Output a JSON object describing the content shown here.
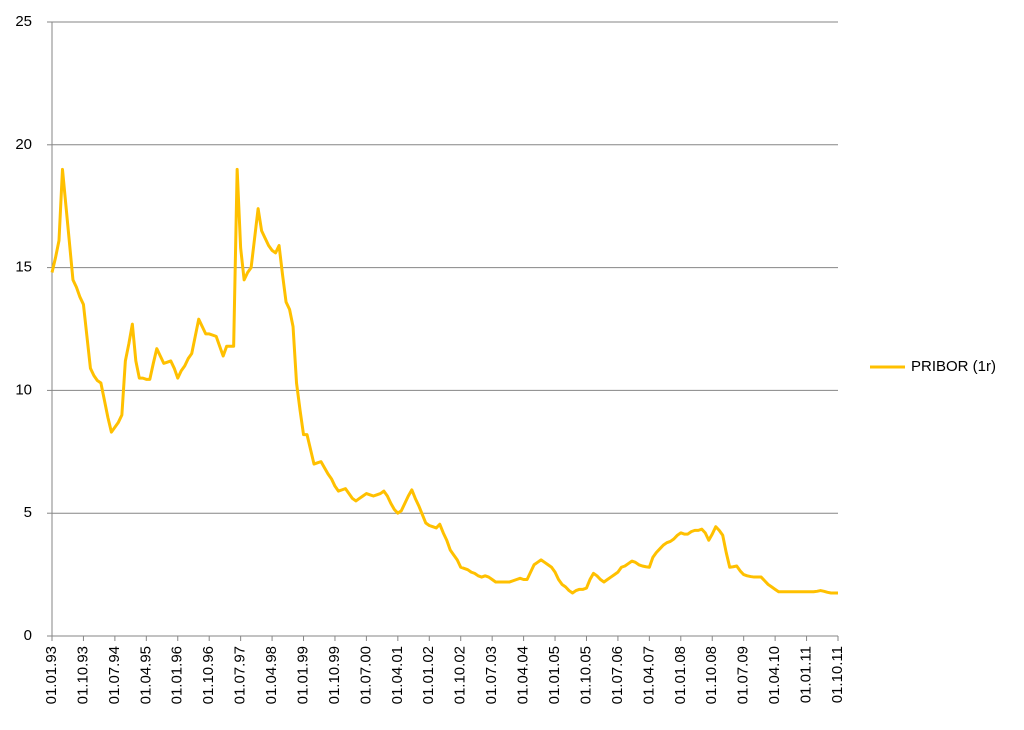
{
  "chart_data": {
    "type": "line",
    "categories": [
      "01.01.93",
      null,
      null,
      null,
      null,
      null,
      null,
      null,
      null,
      "01.10.93",
      null,
      null,
      null,
      null,
      null,
      null,
      null,
      null,
      "01.07.94",
      null,
      null,
      null,
      null,
      null,
      null,
      null,
      null,
      "01.04.95",
      null,
      null,
      null,
      null,
      null,
      null,
      null,
      null,
      "01.01.96",
      null,
      null,
      null,
      null,
      null,
      null,
      null,
      null,
      "01.10.96",
      null,
      null,
      null,
      null,
      null,
      null,
      null,
      null,
      "01.07.97",
      null,
      null,
      null,
      null,
      null,
      null,
      null,
      null,
      "01.04.98",
      null,
      null,
      null,
      null,
      null,
      null,
      null,
      null,
      "01.01.99",
      null,
      null,
      null,
      null,
      null,
      null,
      null,
      null,
      "01.10.99",
      null,
      null,
      null,
      null,
      null,
      null,
      null,
      null,
      "01.07.00",
      null,
      null,
      null,
      null,
      null,
      null,
      null,
      null,
      "01.04.01",
      null,
      null,
      null,
      null,
      null,
      null,
      null,
      null,
      "01.01.02",
      null,
      null,
      null,
      null,
      null,
      null,
      null,
      null,
      "01.10.02",
      null,
      null,
      null,
      null,
      null,
      null,
      null,
      null,
      "01.07.03",
      null,
      null,
      null,
      null,
      null,
      null,
      null,
      null,
      "01.04.04",
      null,
      null,
      null,
      null,
      null,
      null,
      null,
      null,
      "01.01.05",
      null,
      null,
      null,
      null,
      null,
      null,
      null,
      null,
      "01.10.05",
      null,
      null,
      null,
      null,
      null,
      null,
      null,
      null,
      "01.07.06",
      null,
      null,
      null,
      null,
      null,
      null,
      null,
      null,
      "01.04.07",
      null,
      null,
      null,
      null,
      null,
      null,
      null,
      null,
      "01.01.08",
      null,
      null,
      null,
      null,
      null,
      null,
      null,
      null,
      "01.10.08",
      null,
      null,
      null,
      null,
      null,
      null,
      null,
      null,
      "01.07.09",
      null,
      null,
      null,
      null,
      null,
      null,
      null,
      null,
      "01.04.10",
      null,
      null,
      null,
      null,
      null,
      null,
      null,
      null,
      "01.01.11",
      null,
      null,
      null,
      null,
      null,
      null,
      null,
      null,
      "01.10.11"
    ],
    "series": [
      {
        "name": "PRIBOR (1r)",
        "color": "#FFC000",
        "values": [
          14.8,
          15.4,
          16.1,
          19.0,
          17.5,
          16.0,
          14.5,
          14.2,
          13.8,
          13.5,
          12.2,
          10.9,
          10.6,
          10.4,
          10.3,
          9.6,
          8.9,
          8.3,
          8.5,
          8.7,
          9.0,
          11.2,
          11.9,
          12.7,
          11.2,
          10.5,
          10.5,
          10.45,
          10.45,
          11.1,
          11.7,
          11.4,
          11.1,
          11.15,
          11.2,
          10.9,
          10.5,
          10.8,
          11.0,
          11.3,
          11.5,
          12.2,
          12.9,
          12.6,
          12.3,
          12.3,
          12.25,
          12.2,
          11.8,
          11.4,
          11.8,
          11.8,
          11.8,
          19.0,
          15.8,
          14.5,
          14.8,
          15.0,
          16.2,
          17.4,
          16.5,
          16.2,
          15.9,
          15.7,
          15.6,
          15.9,
          14.7,
          13.6,
          13.3,
          12.6,
          10.3,
          9.2,
          8.2,
          8.2,
          7.6,
          7.0,
          7.05,
          7.1,
          6.85,
          6.6,
          6.4,
          6.1,
          5.9,
          5.95,
          6.0,
          5.8,
          5.6,
          5.5,
          5.6,
          5.7,
          5.8,
          5.75,
          5.7,
          5.75,
          5.8,
          5.9,
          5.7,
          5.4,
          5.15,
          5.0,
          5.1,
          5.4,
          5.7,
          5.95,
          5.6,
          5.3,
          4.95,
          4.6,
          4.5,
          4.45,
          4.4,
          4.55,
          4.2,
          3.9,
          3.5,
          3.3,
          3.1,
          2.8,
          2.75,
          2.7,
          2.6,
          2.55,
          2.45,
          2.4,
          2.45,
          2.4,
          2.3,
          2.2,
          2.2,
          2.2,
          2.2,
          2.2,
          2.25,
          2.3,
          2.35,
          2.3,
          2.3,
          2.6,
          2.9,
          3.0,
          3.1,
          3.0,
          2.9,
          2.8,
          2.6,
          2.3,
          2.1,
          2.0,
          1.85,
          1.75,
          1.85,
          1.9,
          1.9,
          1.95,
          2.3,
          2.55,
          2.45,
          2.3,
          2.2,
          2.3,
          2.4,
          2.5,
          2.6,
          2.8,
          2.85,
          2.95,
          3.05,
          3.0,
          2.9,
          2.85,
          2.82,
          2.8,
          3.2,
          3.4,
          3.55,
          3.7,
          3.8,
          3.85,
          3.95,
          4.1,
          4.2,
          4.15,
          4.15,
          4.25,
          4.3,
          4.3,
          4.35,
          4.2,
          3.9,
          4.15,
          4.45,
          4.3,
          4.1,
          3.4,
          2.8,
          2.82,
          2.85,
          2.65,
          2.5,
          2.45,
          2.42,
          2.4,
          2.4,
          2.4,
          2.25,
          2.1,
          2.0,
          1.9,
          1.8,
          1.8,
          1.8,
          1.8,
          1.8,
          1.8,
          1.8,
          1.8,
          1.8,
          1.8,
          1.8,
          1.82,
          1.85,
          1.82,
          1.78,
          1.75,
          1.75,
          1.75
        ]
      }
    ],
    "ylim": [
      0,
      25
    ],
    "yticks": [
      0,
      5,
      10,
      15,
      20,
      25
    ],
    "grid": true,
    "legend": "right"
  }
}
